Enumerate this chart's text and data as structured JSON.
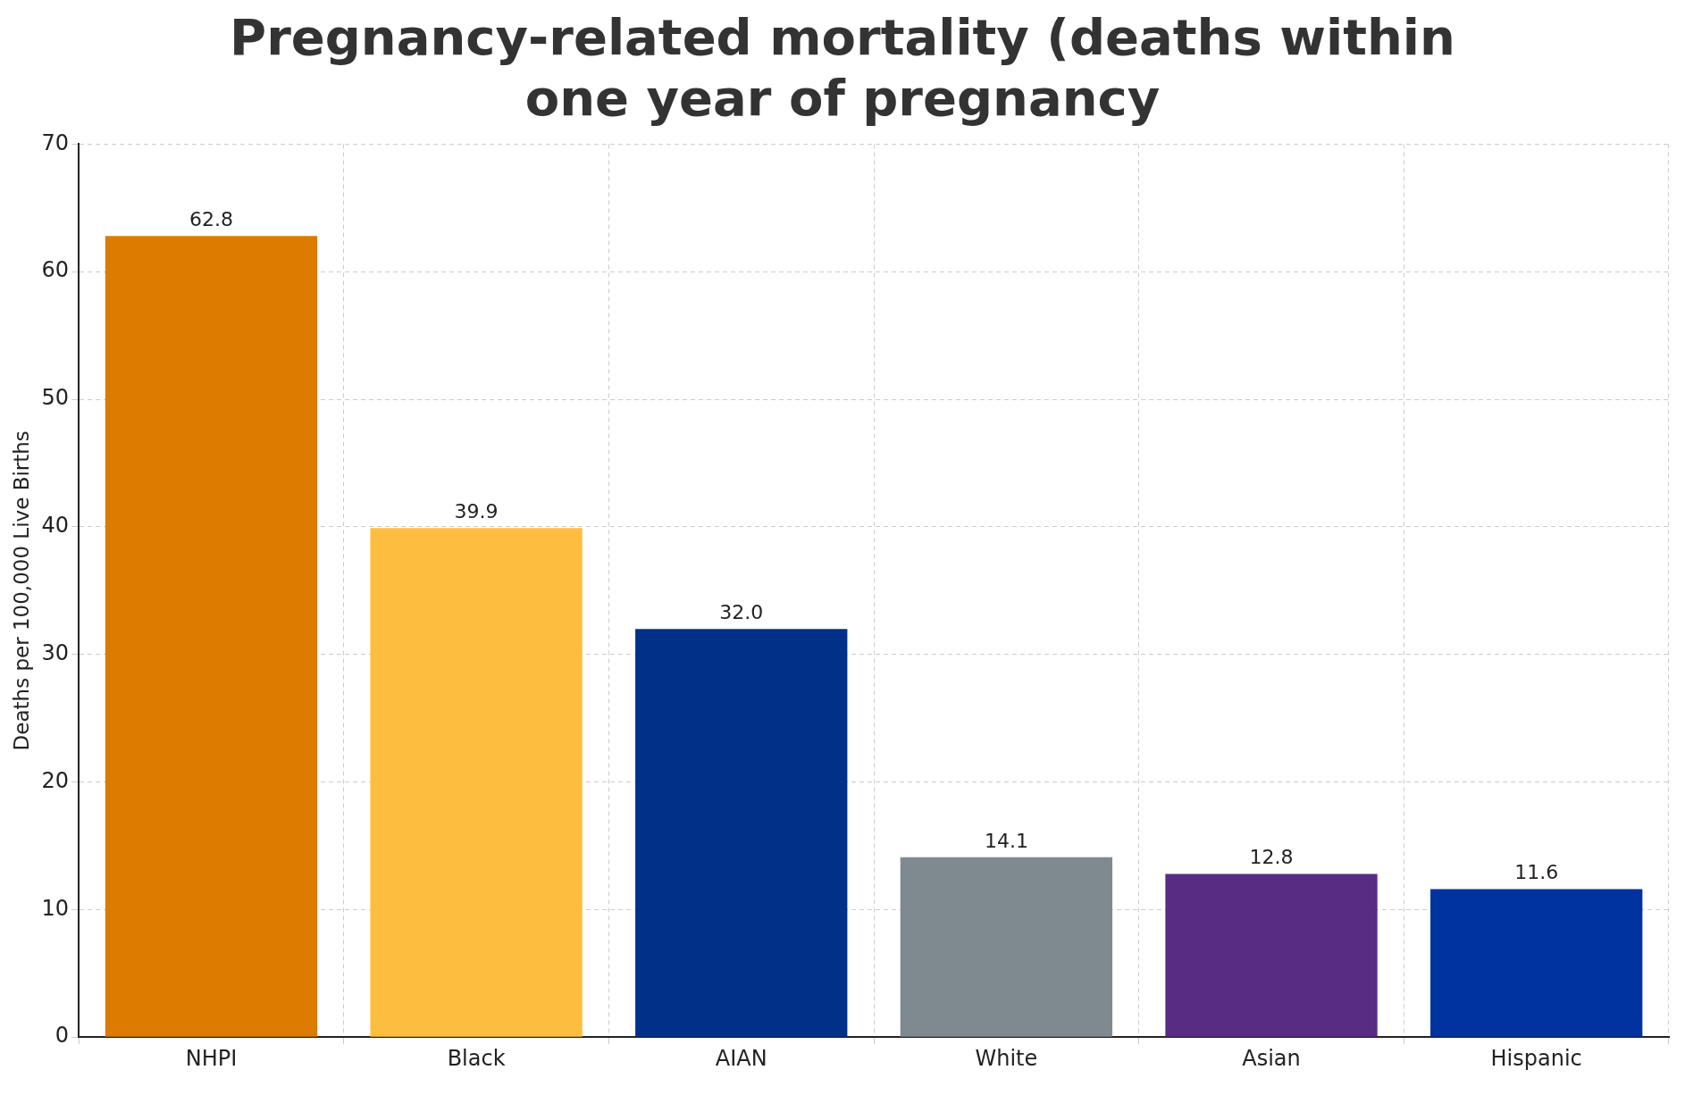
{
  "chart_data": {
    "type": "bar",
    "title": "Pregnancy-related mortality (deaths within one year of pregnancy",
    "ylabel": "Deaths per 100,000 Live Births",
    "categories": [
      "NHPI",
      "Black",
      "AIAN",
      "White",
      "Asian",
      "Hispanic"
    ],
    "values": [
      62.8,
      39.9,
      32.0,
      14.1,
      12.8,
      11.6
    ],
    "value_labels": [
      "62.8",
      "39.9",
      "32.0",
      "14.1",
      "12.8",
      "11.6"
    ],
    "colors": [
      "#dd7a00",
      "#fdbe40",
      "#003087",
      "#7f8a90",
      "#582c83",
      "#0033a0"
    ],
    "ylim": [
      0,
      70
    ],
    "yticks": [
      0,
      10,
      20,
      30,
      40,
      50,
      60,
      70
    ],
    "grid": true,
    "legend": false
  }
}
